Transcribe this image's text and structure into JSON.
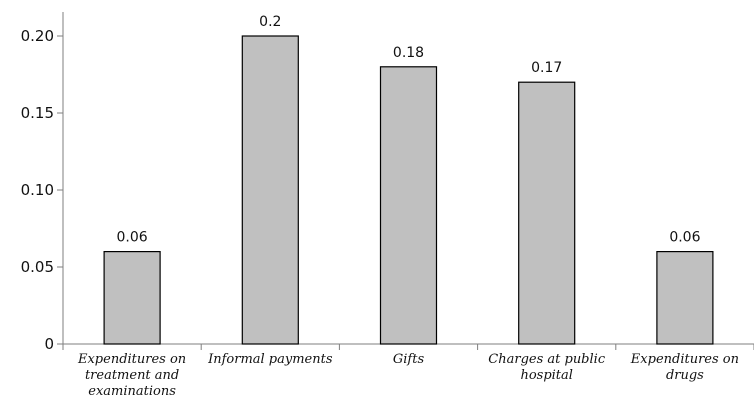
{
  "chart_data": {
    "type": "bar",
    "categories": [
      [
        "Expenditures on",
        "treatment and",
        "examinations"
      ],
      [
        "Informal payments"
      ],
      [
        "Gifts"
      ],
      [
        "Charges at public",
        "hospital"
      ],
      [
        "Expenditures on",
        "drugs"
      ]
    ],
    "values": [
      0.06,
      0.2,
      0.18,
      0.17,
      0.06
    ],
    "data_labels": [
      "0.06",
      "0.2",
      "0.18",
      "0.17",
      "0.06"
    ],
    "yticks": [
      0,
      0.05,
      0.1,
      0.15,
      0.2
    ],
    "ytick_labels": [
      "0",
      "0.05",
      "0.10",
      "0.15",
      "0.20"
    ],
    "ylim": [
      0,
      0.215
    ],
    "grid": false,
    "colors": {
      "bar_fill": "#c0c0c0",
      "bar_stroke": "#000000",
      "axis": "#7f7f7f"
    }
  }
}
